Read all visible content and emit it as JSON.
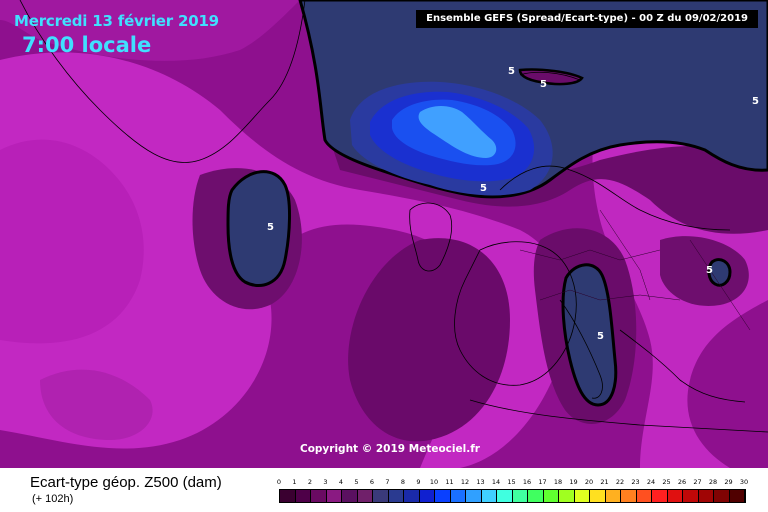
{
  "header": {
    "date": "Mercredi 13 février 2019",
    "time": "7:00 locale",
    "model": "Ensemble GEFS  (Spread/Ecart-type) - 00 Z du 09/02/2019"
  },
  "map": {
    "copyright": "Copyright © 2019 Meteociel.fr",
    "contour_labels": [
      "5",
      "5",
      "5",
      "5",
      "5",
      "5",
      "5"
    ]
  },
  "legend": {
    "title": "Ecart-type géop. Z500 (dam)",
    "subtitle": "(+ 102h)",
    "ticks": [
      "0",
      "1",
      "2",
      "3",
      "4",
      "5",
      "6",
      "7",
      "8",
      "9",
      "10",
      "11",
      "12",
      "13",
      "14",
      "15",
      "16",
      "17",
      "18",
      "19",
      "20",
      "21",
      "22",
      "23",
      "24",
      "25",
      "26",
      "27",
      "28",
      "29",
      "30"
    ],
    "colors": [
      "#3a0030",
      "#4e0048",
      "#6a0a62",
      "#8a1a82",
      "#5a1060",
      "#70206a",
      "#3a3a7a",
      "#2a3a90",
      "#1a2aaa",
      "#1020d0",
      "#0a40ff",
      "#1a70ff",
      "#30a0ff",
      "#40d0ff",
      "#40ffe0",
      "#40ffa0",
      "#40ff60",
      "#60ff30",
      "#a0ff20",
      "#e0ff20",
      "#ffe020",
      "#ffb020",
      "#ff8020",
      "#ff5020",
      "#ff2020",
      "#e01010",
      "#c00808",
      "#a00505",
      "#800303",
      "#500000"
    ]
  },
  "colors": {
    "background_magenta": "#9a109a",
    "bright_magenta": "#c828c8",
    "dark_purple": "#6a0a6a",
    "navy": "#2e3a72",
    "blue_core": "#1a40e0",
    "cyan_core": "#40a0ff",
    "header_cyan": "#40e0ff"
  }
}
